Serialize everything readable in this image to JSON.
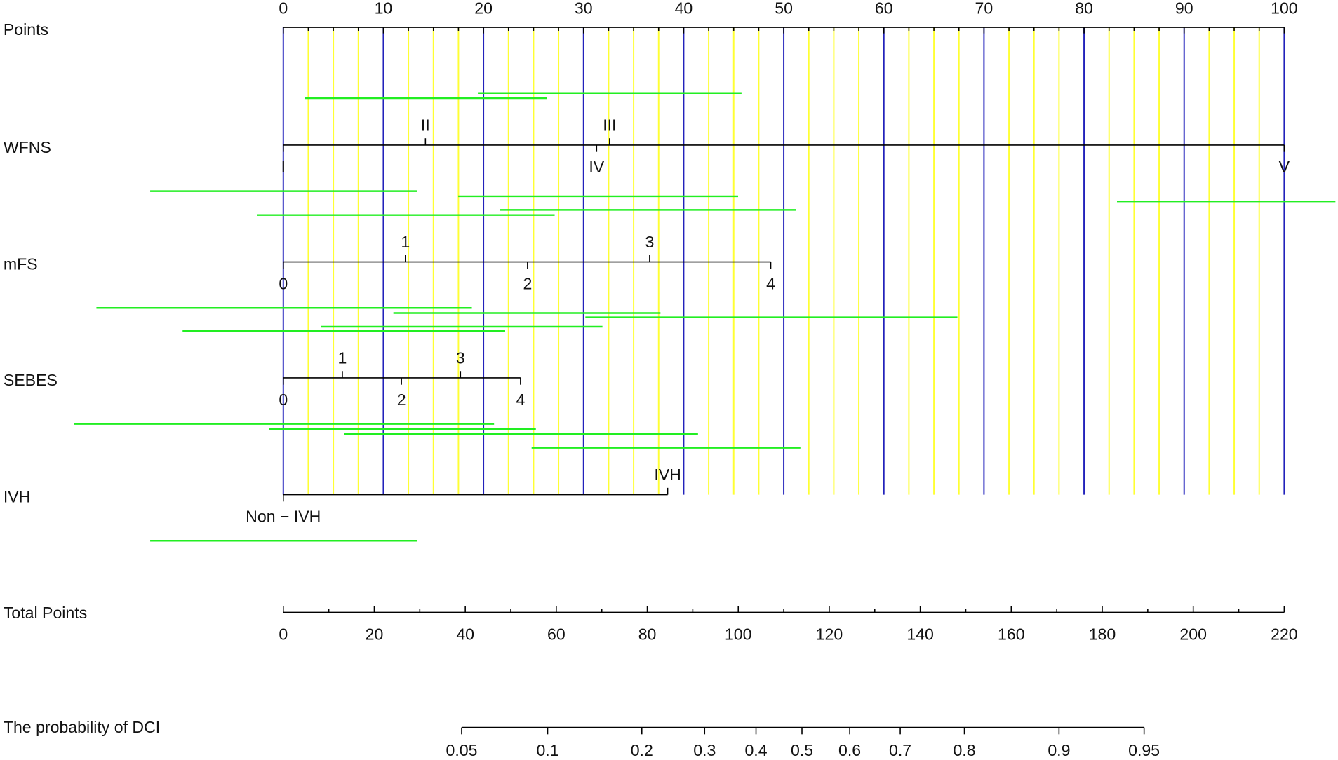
{
  "chart_data": {
    "type": "nomogram",
    "points": {
      "name": "Points",
      "xlim": [
        0,
        100
      ],
      "ticks": [
        0,
        10,
        20,
        30,
        40,
        50,
        60,
        70,
        80,
        90,
        100
      ],
      "minor_ticks": [
        2.5,
        5,
        7.5,
        12.5,
        15,
        17.5,
        22.5,
        25,
        27.5,
        32.5,
        35,
        37.5,
        42.5,
        45,
        47.5,
        52.5,
        55,
        57.5,
        62.5,
        65,
        67.5,
        72.5,
        75,
        77.5,
        82.5,
        85,
        87.5,
        92.5,
        95,
        97.5
      ],
      "grid_color": "#2222bb",
      "minor_grid_color": "#ffff33"
    },
    "variables": [
      {
        "name": "WFNS",
        "ticks": [
          {
            "value": 0,
            "label": "I"
          },
          {
            "value": 14.2,
            "label": "II"
          },
          {
            "value": 31.3,
            "label": "IV"
          },
          {
            "value": 32.6,
            "label": "III"
          },
          {
            "value": 100,
            "label": "V"
          }
        ]
      },
      {
        "name": "mFS",
        "ticks": [
          {
            "value": 0,
            "label": "0"
          },
          {
            "value": 12.2,
            "label": "1"
          },
          {
            "value": 24.4,
            "label": "2"
          },
          {
            "value": 36.6,
            "label": "3"
          },
          {
            "value": 48.7,
            "label": "4"
          }
        ]
      },
      {
        "name": "SEBES",
        "ticks": [
          {
            "value": 0,
            "label": "0"
          },
          {
            "value": 5.9,
            "label": "1"
          },
          {
            "value": 11.8,
            "label": "2"
          },
          {
            "value": 17.7,
            "label": "3"
          },
          {
            "value": 23.7,
            "label": "4"
          }
        ]
      },
      {
        "name": "IVH",
        "ticks": [
          {
            "value": 0,
            "label": "Non − IVH"
          },
          {
            "value": 38.4,
            "label": "IVH"
          }
        ]
      }
    ],
    "total_points": {
      "name": "Total Points",
      "xlim": [
        0,
        220
      ],
      "ticks": [
        0,
        20,
        40,
        60,
        80,
        100,
        120,
        140,
        160,
        180,
        200,
        220
      ],
      "minor_ticks": [
        10,
        30,
        50,
        70,
        90,
        110,
        130,
        150,
        170,
        190,
        210
      ]
    },
    "probability": {
      "name": "The probability of DCI",
      "ticks": [
        {
          "value": 39.2,
          "label": "0.05"
        },
        {
          "value": 58.1,
          "label": "0.1"
        },
        {
          "value": 78.8,
          "label": "0.2"
        },
        {
          "value": 92.6,
          "label": "0.3"
        },
        {
          "value": 103.9,
          "label": "0.4"
        },
        {
          "value": 114.0,
          "label": "0.5"
        },
        {
          "value": 124.5,
          "label": "0.6"
        },
        {
          "value": 135.6,
          "label": "0.7"
        },
        {
          "value": 149.7,
          "label": "0.8"
        },
        {
          "value": 170.5,
          "label": "0.9"
        },
        {
          "value": 189.2,
          "label": "0.95"
        }
      ]
    }
  }
}
